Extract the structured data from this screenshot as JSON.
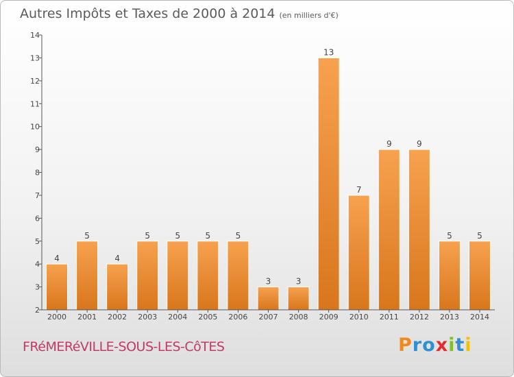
{
  "title": "Autres Impôts et Taxes de 2000 à 2014",
  "subtitle": "(en milliers d'€)",
  "place": "FRéMERéVILLE-SOUS-LES-CôTES",
  "logo": {
    "letters": [
      "P",
      "r",
      "o",
      "x",
      "i",
      "t",
      "i"
    ],
    "colors": [
      "#f08a1c",
      "#2f8fd0",
      "#2f8fd0",
      "#e32b2b",
      "#7fbf2a",
      "#2f8fd0",
      "#f2c200"
    ]
  },
  "chart_data": {
    "type": "bar",
    "categories": [
      "2000",
      "2001",
      "2002",
      "2003",
      "2004",
      "2005",
      "2006",
      "2007",
      "2008",
      "2009",
      "2010",
      "2011",
      "2012",
      "2013",
      "2014"
    ],
    "values": [
      4,
      5,
      4,
      5,
      5,
      5,
      5,
      3,
      3,
      13,
      7,
      9,
      9,
      5,
      5
    ],
    "ylim": [
      2,
      14
    ],
    "yticks": [
      2,
      3,
      4,
      5,
      6,
      7,
      8,
      9,
      10,
      11,
      12,
      13,
      14
    ],
    "grid": false,
    "bar_color": "#ef8a2e"
  }
}
